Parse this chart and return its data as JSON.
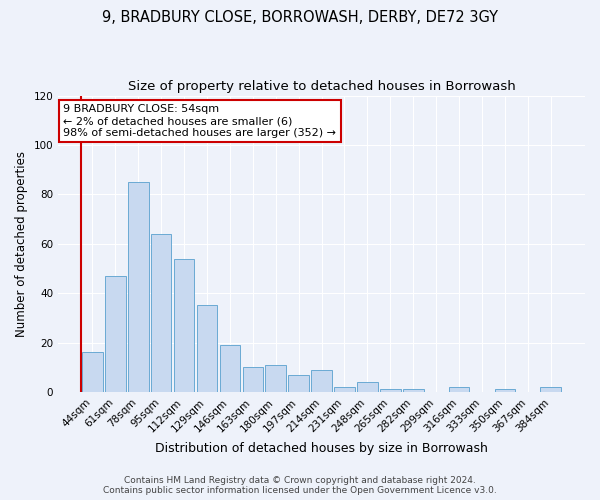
{
  "title": "9, BRADBURY CLOSE, BORROWASH, DERBY, DE72 3GY",
  "subtitle": "Size of property relative to detached houses in Borrowash",
  "xlabel": "Distribution of detached houses by size in Borrowash",
  "ylabel": "Number of detached properties",
  "categories": [
    "44sqm",
    "61sqm",
    "78sqm",
    "95sqm",
    "112sqm",
    "129sqm",
    "146sqm",
    "163sqm",
    "180sqm",
    "197sqm",
    "214sqm",
    "231sqm",
    "248sqm",
    "265sqm",
    "282sqm",
    "299sqm",
    "316sqm",
    "333sqm",
    "350sqm",
    "367sqm",
    "384sqm"
  ],
  "values": [
    16,
    47,
    85,
    64,
    54,
    35,
    19,
    10,
    11,
    7,
    9,
    2,
    4,
    1,
    1,
    0,
    2,
    0,
    1,
    0,
    2
  ],
  "bar_color": "#c8d9f0",
  "bar_edge_color": "#6aaad4",
  "ylim": [
    0,
    120
  ],
  "yticks": [
    0,
    20,
    40,
    60,
    80,
    100,
    120
  ],
  "annotation_line1": "9 BRADBURY CLOSE: 54sqm",
  "annotation_line2": "← 2% of detached houses are smaller (6)",
  "annotation_line3": "98% of semi-detached houses are larger (352) →",
  "annotation_box_facecolor": "#ffffff",
  "annotation_box_edgecolor": "#cc0000",
  "red_line_color": "#cc0000",
  "background_color": "#eef2fa",
  "grid_color": "#ffffff",
  "footer_line1": "Contains HM Land Registry data © Crown copyright and database right 2024.",
  "footer_line2": "Contains public sector information licensed under the Open Government Licence v3.0.",
  "title_fontsize": 10.5,
  "subtitle_fontsize": 9.5,
  "ylabel_fontsize": 8.5,
  "xlabel_fontsize": 9,
  "tick_fontsize": 7.5,
  "annotation_fontsize": 8,
  "footer_fontsize": 6.5
}
